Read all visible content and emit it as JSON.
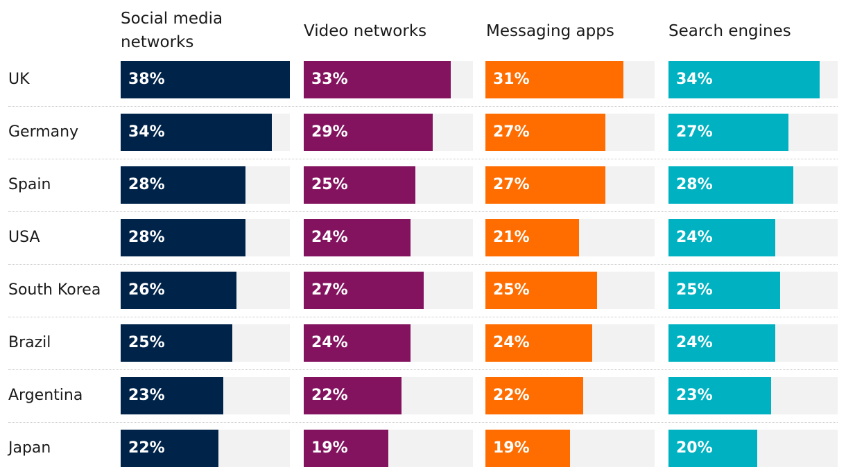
{
  "chart_data": {
    "type": "bar",
    "orientation": "horizontal",
    "categories": [
      "UK",
      "Germany",
      "Spain",
      "USA",
      "South Korea",
      "Brazil",
      "Argentina",
      "Japan"
    ],
    "xlim": [
      0,
      38
    ],
    "unit": "%",
    "series": [
      {
        "name": "Social media networks",
        "color": "#002349",
        "values": [
          38,
          34,
          28,
          28,
          26,
          25,
          23,
          22
        ],
        "labels": [
          "38%",
          "34%",
          "28%",
          "28%",
          "26%",
          "25%",
          "23%",
          "22%"
        ]
      },
      {
        "name": "Video networks",
        "color": "#83135f",
        "values": [
          33,
          29,
          25,
          24,
          27,
          24,
          22,
          19
        ],
        "labels": [
          "33%",
          "29%",
          "25%",
          "24%",
          "27%",
          "24%",
          "22%",
          "19%"
        ]
      },
      {
        "name": "Messaging apps",
        "color": "#ff6d00",
        "values": [
          31,
          27,
          27,
          21,
          25,
          24,
          22,
          19
        ],
        "labels": [
          "31%",
          "27%",
          "27%",
          "21%",
          "25%",
          "24%",
          "22%",
          "19%"
        ]
      },
      {
        "name": "Search engines",
        "color": "#00b2c1",
        "values": [
          34,
          27,
          28,
          24,
          25,
          24,
          23,
          20
        ],
        "labels": [
          "34%",
          "27%",
          "28%",
          "24%",
          "25%",
          "24%",
          "23%",
          "20%"
        ]
      }
    ],
    "track_color": "#f2f2f2"
  },
  "headers": {
    "social_line1": "Social media",
    "social_line2": "networks",
    "video": "Video networks",
    "messaging": "Messaging apps",
    "search": "Search engines"
  }
}
